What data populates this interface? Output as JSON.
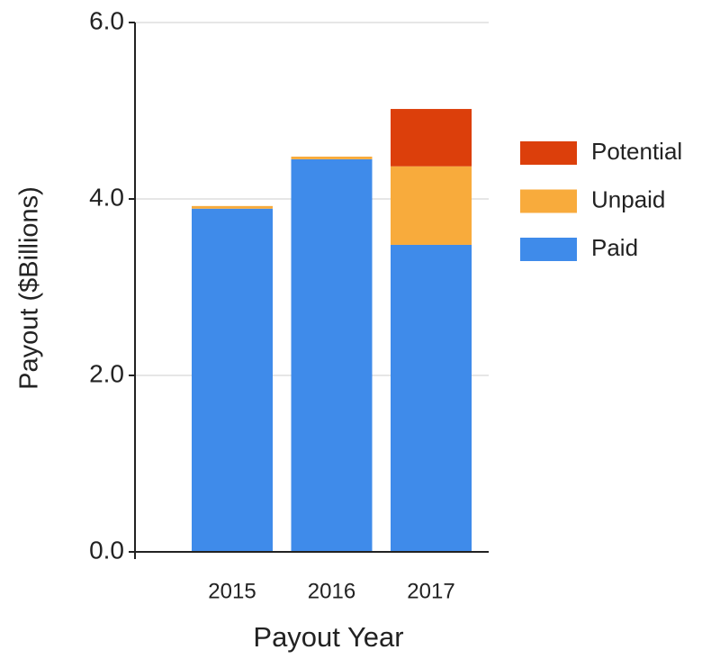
{
  "chart_data": {
    "type": "stacked_bar",
    "xlabel": "Payout Year",
    "ylabel": "Payout ($Billions)",
    "categories": [
      "2015",
      "2016",
      "2017"
    ],
    "series": [
      {
        "name": "Paid",
        "color": "#3f8bea",
        "values": [
          3.89,
          4.45,
          3.48
        ]
      },
      {
        "name": "Unpaid",
        "color": "#f8ab3c",
        "values": [
          0.03,
          0.03,
          0.89
        ]
      },
      {
        "name": "Potential",
        "color": "#dc3f0b",
        "values": [
          0,
          0,
          0.65
        ]
      }
    ],
    "ylim": [
      0,
      6
    ],
    "yticks": [
      {
        "value": 0,
        "label": "0.0"
      },
      {
        "value": 2,
        "label": "2.0"
      },
      {
        "value": 4,
        "label": "4.0"
      },
      {
        "value": 6,
        "label": "6.0"
      }
    ],
    "grid": true,
    "legend": "right"
  }
}
